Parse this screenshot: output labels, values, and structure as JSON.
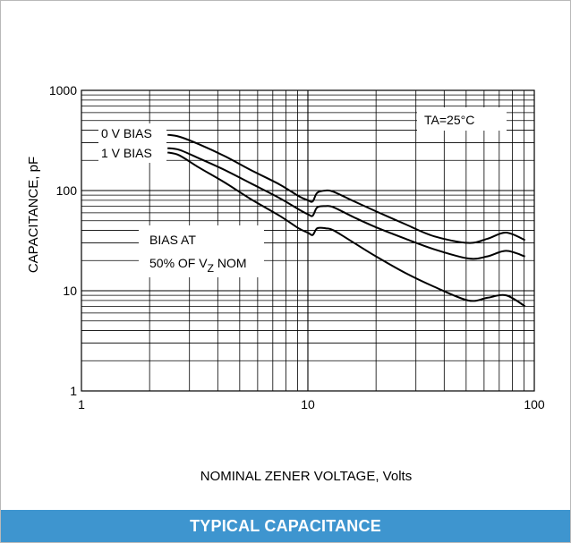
{
  "caption": "TYPICAL CAPACITANCE",
  "chart_data": {
    "type": "line",
    "title": "",
    "xlabel": "NOMINAL ZENER VOLTAGE, Volts",
    "ylabel": "CAPACITANCE, pF",
    "xscale": "log",
    "yscale": "log",
    "xlim": [
      1,
      100
    ],
    "ylim": [
      1,
      1000
    ],
    "grid": true,
    "xticks": [
      "1",
      "10",
      "100"
    ],
    "yticks": [
      "1000",
      "100",
      "10",
      "1"
    ],
    "annotations": {
      "temperature": "TA=25°C",
      "bias_note_line1": "BIAS AT",
      "bias_note_line2_prefix": "50% OF V",
      "bias_note_line2_sub": "Z",
      "bias_note_line2_suffix": " NOM"
    },
    "series": [
      {
        "name": "0 V BIAS",
        "x": [
          2.4,
          2.7,
          3.3,
          4.3,
          5.6,
          7.5,
          9.1,
          10,
          10.5,
          11,
          12,
          13,
          16,
          20,
          27,
          36,
          51,
          62,
          75,
          91
        ],
        "y": [
          360,
          345,
          290,
          220,
          160,
          115,
          88,
          80,
          78,
          95,
          100,
          97,
          78,
          62,
          46,
          35,
          30,
          33,
          38,
          32
        ]
      },
      {
        "name": "1 V BIAS",
        "x": [
          2.4,
          2.7,
          3.3,
          4.3,
          5.6,
          7.5,
          9.1,
          10,
          10.5,
          11,
          12,
          13,
          16,
          20,
          27,
          36,
          51,
          62,
          75,
          91
        ],
        "y": [
          265,
          255,
          210,
          160,
          118,
          84,
          65,
          58,
          56,
          68,
          70,
          68,
          54,
          43,
          33,
          26,
          21,
          22,
          25,
          22
        ]
      },
      {
        "name": "BIAS AT 50% OF VZ NOM",
        "x": [
          2.4,
          2.7,
          3.3,
          4.3,
          5.6,
          7.5,
          9.1,
          10,
          10.5,
          11,
          12,
          13,
          16,
          20,
          27,
          36,
          51,
          62,
          75,
          91
        ],
        "y": [
          240,
          225,
          170,
          120,
          82,
          56,
          42,
          38,
          36,
          42,
          42,
          40,
          30,
          22,
          15,
          11,
          8,
          8.5,
          9,
          7
        ]
      }
    ]
  }
}
